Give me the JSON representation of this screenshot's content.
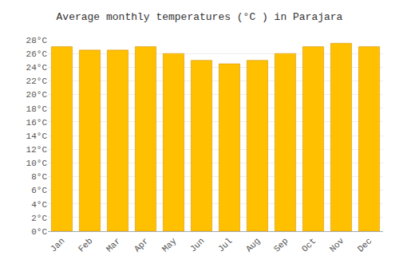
{
  "chart_data": {
    "type": "bar",
    "title": "Average monthly temperatures (°C ) in Parajara",
    "categories": [
      "Jan",
      "Feb",
      "Mar",
      "Apr",
      "May",
      "Jun",
      "Jul",
      "Aug",
      "Sep",
      "Oct",
      "Nov",
      "Dec"
    ],
    "values": [
      27.0,
      26.5,
      26.5,
      27.0,
      26.0,
      25.0,
      24.5,
      25.0,
      26.0,
      27.0,
      27.5,
      27.0
    ],
    "color": "#FFC000",
    "ylim": [
      0,
      28
    ],
    "yticks": [
      {
        "value": 0,
        "label": "0°C"
      },
      {
        "value": 2,
        "label": "2°C"
      },
      {
        "value": 4,
        "label": "4°C"
      },
      {
        "value": 6,
        "label": "6°C"
      },
      {
        "value": 8,
        "label": "8°C"
      },
      {
        "value": 10,
        "label": "10°C"
      },
      {
        "value": 12,
        "label": "12°C"
      },
      {
        "value": 14,
        "label": "14°C"
      },
      {
        "value": 16,
        "label": "16°C"
      },
      {
        "value": 18,
        "label": "18°C"
      },
      {
        "value": 20,
        "label": "20°C"
      },
      {
        "value": 22,
        "label": "22°C"
      },
      {
        "value": 24,
        "label": "24°C"
      },
      {
        "value": 26,
        "label": "26°C"
      },
      {
        "value": 28,
        "label": "28°C"
      }
    ],
    "grid": true
  }
}
